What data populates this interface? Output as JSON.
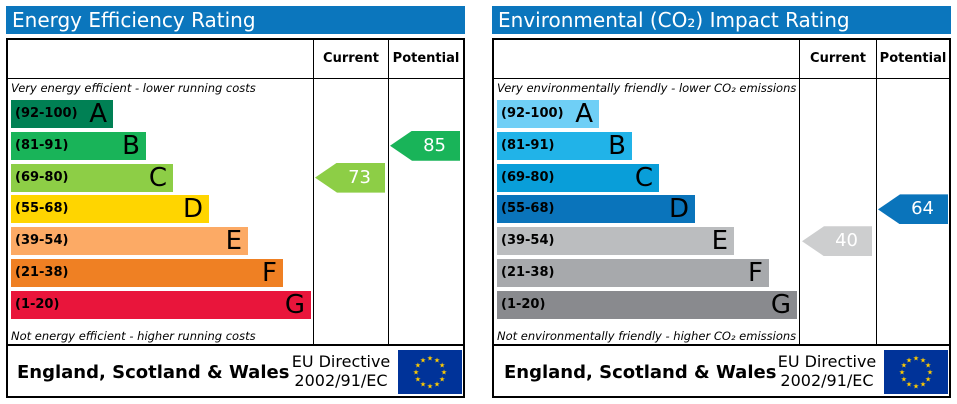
{
  "chart_data": [
    {
      "type": "bar",
      "title": "Energy Efficiency Rating",
      "header_current": "Current",
      "header_potential": "Potential",
      "top_caption": "Very energy efficient - lower running costs",
      "bottom_caption": "Not energy efficient - higher running costs",
      "bands": [
        {
          "range": "(92-100)",
          "letter": "A",
          "color": "#008054"
        },
        {
          "range": "(81-91)",
          "letter": "B",
          "color": "#19b459"
        },
        {
          "range": "(69-80)",
          "letter": "C",
          "color": "#8dce46"
        },
        {
          "range": "(55-68)",
          "letter": "D",
          "color": "#ffd500"
        },
        {
          "range": "(39-54)",
          "letter": "E",
          "color": "#fcaa65"
        },
        {
          "range": "(21-38)",
          "letter": "F",
          "color": "#ef8023"
        },
        {
          "range": "(1-20)",
          "letter": "G",
          "color": "#e9153b"
        }
      ],
      "current": {
        "value": 73,
        "band": 2,
        "color": "#8dce46"
      },
      "potential": {
        "value": 85,
        "band": 1,
        "color": "#19b459"
      },
      "footer_region": "England, Scotland & Wales",
      "directive_line1": "EU Directive",
      "directive_line2": "2002/91/EC"
    },
    {
      "type": "bar",
      "title": "Environmental (CO₂) Impact Rating",
      "header_current": "Current",
      "header_potential": "Potential",
      "top_caption": "Very environmentally friendly - lower CO₂ emissions",
      "bottom_caption": "Not environmentally friendly - higher CO₂ emissions",
      "bands": [
        {
          "range": "(92-100)",
          "letter": "A",
          "color": "#6fcff6"
        },
        {
          "range": "(81-91)",
          "letter": "B",
          "color": "#21b3e8"
        },
        {
          "range": "(69-80)",
          "letter": "C",
          "color": "#099ed9"
        },
        {
          "range": "(55-68)",
          "letter": "D",
          "color": "#0a74bb"
        },
        {
          "range": "(39-54)",
          "letter": "E",
          "color": "#bbbdbf"
        },
        {
          "range": "(21-38)",
          "letter": "F",
          "color": "#a7a9ac"
        },
        {
          "range": "(1-20)",
          "letter": "G",
          "color": "#898a8e"
        }
      ],
      "current": {
        "value": 40,
        "band": 4,
        "color": "#cdcecf"
      },
      "potential": {
        "value": 64,
        "band": 3,
        "color": "#0a74bb"
      },
      "footer_region": "England, Scotland & Wales",
      "directive_line1": "EU Directive",
      "directive_line2": "2002/91/EC"
    }
  ]
}
